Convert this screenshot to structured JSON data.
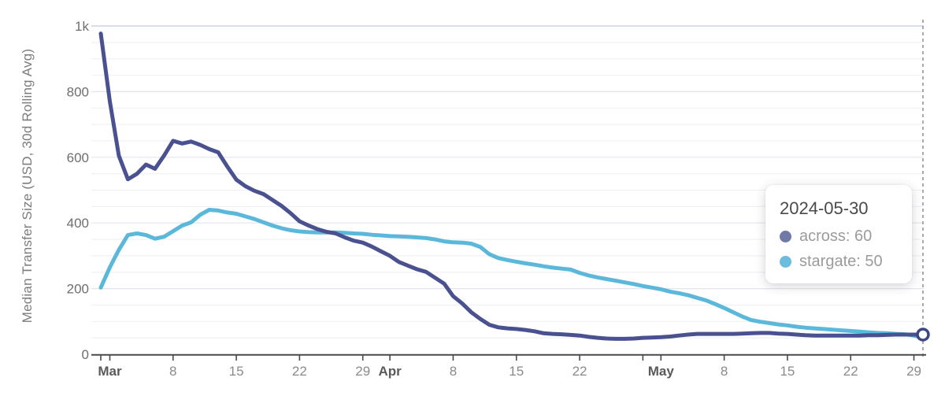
{
  "chart_data": {
    "type": "line",
    "title": "",
    "xlabel": "",
    "ylabel": "Median Transfer Size (USD, 30d Rolling Avg)",
    "ylim": [
      0,
      1000
    ],
    "grid": {
      "minor_step": 50,
      "major_step": 200,
      "vertical_gridlines": false
    },
    "legend_position": "tooltip",
    "x_start": "2024-02-29",
    "x_end": "2024-05-30",
    "cadence": "daily",
    "y_ticks": [
      {
        "value": 0,
        "label": "0"
      },
      {
        "value": 200,
        "label": "200"
      },
      {
        "value": 400,
        "label": "400"
      },
      {
        "value": 600,
        "label": "600"
      },
      {
        "value": 800,
        "label": "800"
      },
      {
        "value": 1000,
        "label": "1k"
      }
    ],
    "x_ticks": [
      {
        "day": 0,
        "label": "",
        "bold": false
      },
      {
        "day": 1,
        "label": "Mar",
        "bold": true
      },
      {
        "day": 8,
        "label": "8",
        "bold": false
      },
      {
        "day": 15,
        "label": "15",
        "bold": false
      },
      {
        "day": 22,
        "label": "22",
        "bold": false
      },
      {
        "day": 29,
        "label": "29",
        "bold": false
      },
      {
        "day": 32,
        "label": "Apr",
        "bold": true
      },
      {
        "day": 39,
        "label": "8",
        "bold": false
      },
      {
        "day": 46,
        "label": "15",
        "bold": false
      },
      {
        "day": 53,
        "label": "22",
        "bold": false
      },
      {
        "day": 60,
        "label": "",
        "bold": false
      },
      {
        "day": 62,
        "label": "May",
        "bold": true
      },
      {
        "day": 69,
        "label": "8",
        "bold": false
      },
      {
        "day": 76,
        "label": "15",
        "bold": false
      },
      {
        "day": 83,
        "label": "22",
        "bold": false
      },
      {
        "day": 90,
        "label": "29",
        "bold": false
      }
    ],
    "series": [
      {
        "name": "stargate",
        "color": "#5bb8db",
        "values": [
          203,
          265,
          318,
          363,
          368,
          363,
          352,
          358,
          375,
          392,
          402,
          425,
          440,
          438,
          432,
          428,
          420,
          412,
          402,
          392,
          384,
          378,
          374,
          372,
          371,
          371,
          371,
          370,
          368,
          367,
          364,
          362,
          360,
          359,
          358,
          356,
          354,
          350,
          344,
          341,
          340,
          337,
          327,
          305,
          293,
          287,
          282,
          277,
          273,
          268,
          264,
          261,
          258,
          248,
          240,
          234,
          229,
          224,
          219,
          214,
          208,
          203,
          198,
          191,
          186,
          180,
          172,
          164,
          153,
          141,
          128,
          115,
          104,
          99,
          95,
          91,
          88,
          84,
          81,
          79,
          77,
          75,
          73,
          71,
          69,
          67,
          65,
          64,
          62,
          61,
          57,
          50
        ]
      },
      {
        "name": "across",
        "color": "#4a5190",
        "values": [
          977,
          770,
          605,
          533,
          550,
          578,
          565,
          605,
          650,
          642,
          648,
          638,
          625,
          615,
          572,
          532,
          512,
          498,
          488,
          470,
          452,
          430,
          405,
          392,
          381,
          373,
          368,
          356,
          346,
          340,
          328,
          314,
          300,
          281,
          270,
          259,
          251,
          233,
          215,
          177,
          155,
          128,
          108,
          90,
          82,
          79,
          77,
          74,
          70,
          64,
          62,
          61,
          59,
          57,
          53,
          50,
          48,
          47,
          47,
          48,
          50,
          51,
          52,
          54,
          57,
          60,
          62,
          62,
          62,
          62,
          62,
          63,
          64,
          65,
          65,
          63,
          62,
          60,
          58,
          57,
          57,
          57,
          57,
          57,
          57,
          58,
          58,
          59,
          60,
          60,
          60,
          60
        ]
      }
    ]
  },
  "crosshair": {
    "day": 91,
    "date": "2024-05-30"
  },
  "tooltip": {
    "date": "2024-05-30",
    "entries": [
      {
        "series": "across",
        "value": 60,
        "label": "across: 60",
        "dot_color": "#707aa8"
      },
      {
        "series": "stargate",
        "value": 50,
        "label": "stargate: 50",
        "dot_color": "#6cbcdd"
      }
    ]
  },
  "colors": {
    "across_line": "#4a5190",
    "stargate_line": "#5bb8db",
    "marker_ring": "#3d4784",
    "crosshair": "#8f8f98"
  }
}
